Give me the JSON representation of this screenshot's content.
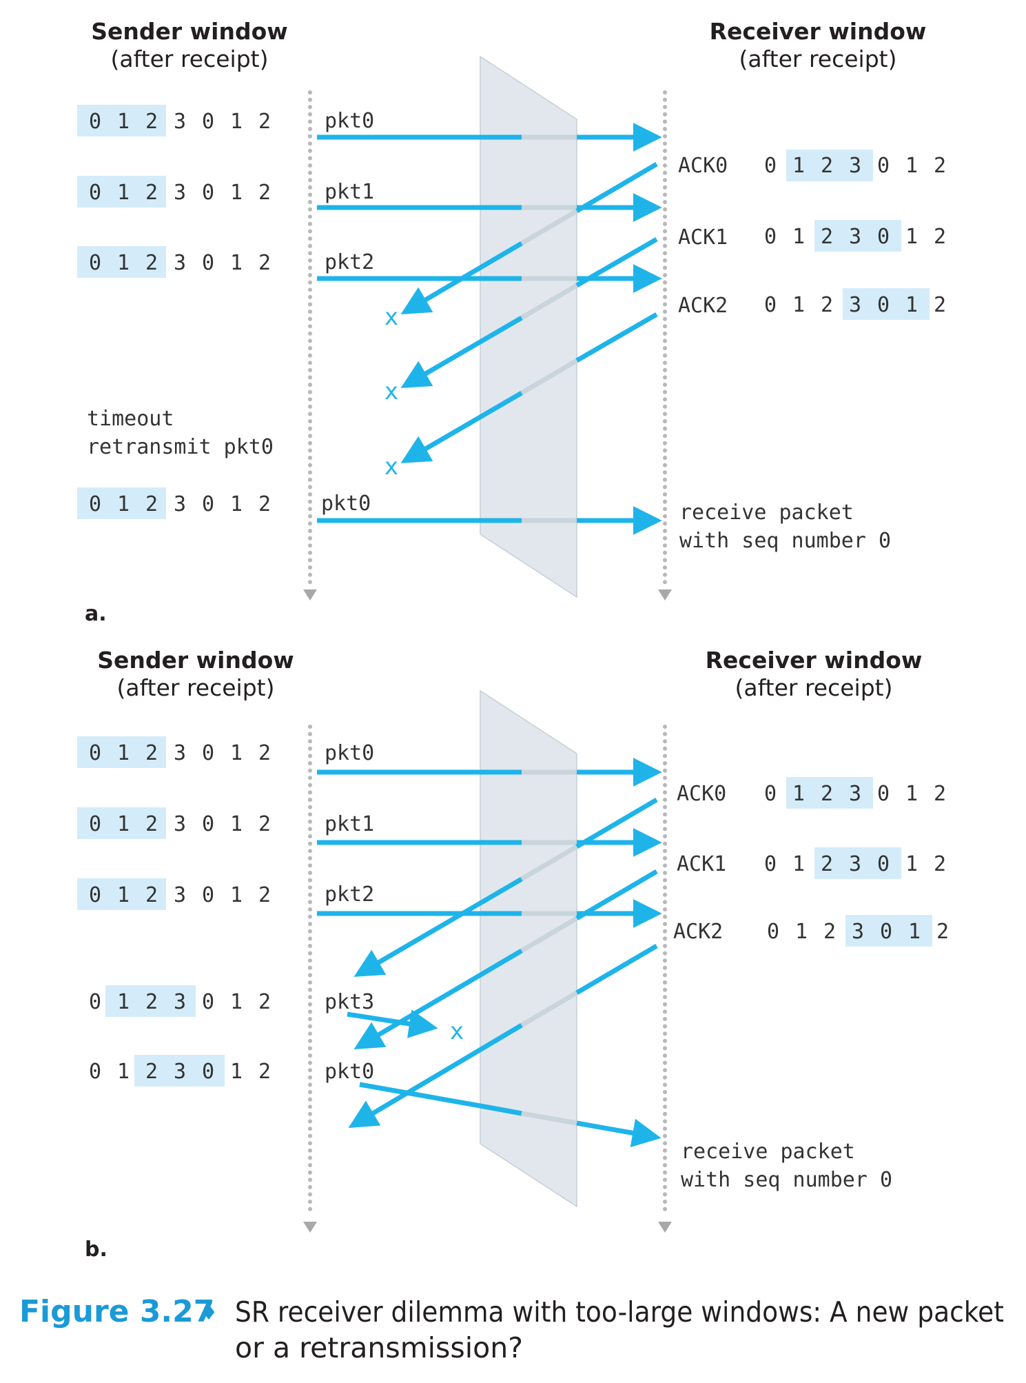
{
  "colors": {
    "arrow": "#1eb4ea",
    "arrow_faded": "#c9d4dc",
    "window_highlight": "#d4ecf9",
    "medium": "#e1e7ec",
    "timeline": "#b8b8b8",
    "caption_accent": "#1a9ad6"
  },
  "icons": {
    "lost": "x-mark-icon",
    "timeline_end": "down-triangle-icon"
  },
  "panels": [
    {
      "label": "a.",
      "sender_title": "Sender window",
      "sender_subtitle": "(after receipt)",
      "receiver_title": "Receiver window",
      "receiver_subtitle": "(after receipt)",
      "sender_windows": [
        {
          "seq": [
            "0",
            "1",
            "2",
            "3",
            "0",
            "1",
            "2"
          ],
          "highlight": [
            0,
            2
          ]
        },
        {
          "seq": [
            "0",
            "1",
            "2",
            "3",
            "0",
            "1",
            "2"
          ],
          "highlight": [
            0,
            2
          ]
        },
        {
          "seq": [
            "0",
            "1",
            "2",
            "3",
            "0",
            "1",
            "2"
          ],
          "highlight": [
            0,
            2
          ]
        },
        {
          "seq": [
            "0",
            "1",
            "2",
            "3",
            "0",
            "1",
            "2"
          ],
          "highlight": [
            0,
            2
          ]
        }
      ],
      "packets": [
        "pkt0",
        "pkt1",
        "pkt2",
        "pkt0"
      ],
      "acks": [
        {
          "label": "ACK0",
          "seq": [
            "0",
            "1",
            "2",
            "3",
            "0",
            "1",
            "2"
          ],
          "highlight": [
            1,
            3
          ]
        },
        {
          "label": "ACK1",
          "seq": [
            "0",
            "1",
            "2",
            "3",
            "0",
            "1",
            "2"
          ],
          "highlight": [
            2,
            4
          ]
        },
        {
          "label": "ACK2",
          "seq": [
            "0",
            "1",
            "2",
            "3",
            "0",
            "1",
            "2"
          ],
          "highlight": [
            3,
            5
          ]
        }
      ],
      "sender_note": [
        "timeout",
        "retransmit pkt0"
      ],
      "lost_marks": [
        "x",
        "x",
        "x"
      ],
      "receiver_note": [
        "receive packet",
        "with seq number 0"
      ]
    },
    {
      "label": "b.",
      "sender_title": "Sender window",
      "sender_subtitle": "(after receipt)",
      "receiver_title": "Receiver window",
      "receiver_subtitle": "(after receipt)",
      "sender_windows": [
        {
          "seq": [
            "0",
            "1",
            "2",
            "3",
            "0",
            "1",
            "2"
          ],
          "highlight": [
            0,
            2
          ]
        },
        {
          "seq": [
            "0",
            "1",
            "2",
            "3",
            "0",
            "1",
            "2"
          ],
          "highlight": [
            0,
            2
          ]
        },
        {
          "seq": [
            "0",
            "1",
            "2",
            "3",
            "0",
            "1",
            "2"
          ],
          "highlight": [
            0,
            2
          ]
        },
        {
          "seq": [
            "0",
            "1",
            "2",
            "3",
            "0",
            "1",
            "2"
          ],
          "highlight": [
            1,
            3
          ]
        },
        {
          "seq": [
            "0",
            "1",
            "2",
            "3",
            "0",
            "1",
            "2"
          ],
          "highlight": [
            2,
            4
          ]
        }
      ],
      "packets": [
        "pkt0",
        "pkt1",
        "pkt2",
        "pkt3",
        "pkt0"
      ],
      "acks": [
        {
          "label": "ACK0",
          "seq": [
            "0",
            "1",
            "2",
            "3",
            "0",
            "1",
            "2"
          ],
          "highlight": [
            1,
            3
          ]
        },
        {
          "label": "ACK1",
          "seq": [
            "0",
            "1",
            "2",
            "3",
            "0",
            "1",
            "2"
          ],
          "highlight": [
            2,
            4
          ]
        },
        {
          "label": "ACK2",
          "seq": [
            "0",
            "1",
            "2",
            "3",
            "0",
            "1",
            "2"
          ],
          "highlight": [
            3,
            5
          ]
        }
      ],
      "lost_marks": [
        "x"
      ],
      "receiver_note": [
        "receive packet",
        "with seq number 0"
      ]
    }
  ],
  "caption": {
    "number": "Figure 3.27",
    "separator": "♦",
    "line1": "SR receiver dilemma with too-large windows: A new packet",
    "line2": "or a retransmission?"
  }
}
